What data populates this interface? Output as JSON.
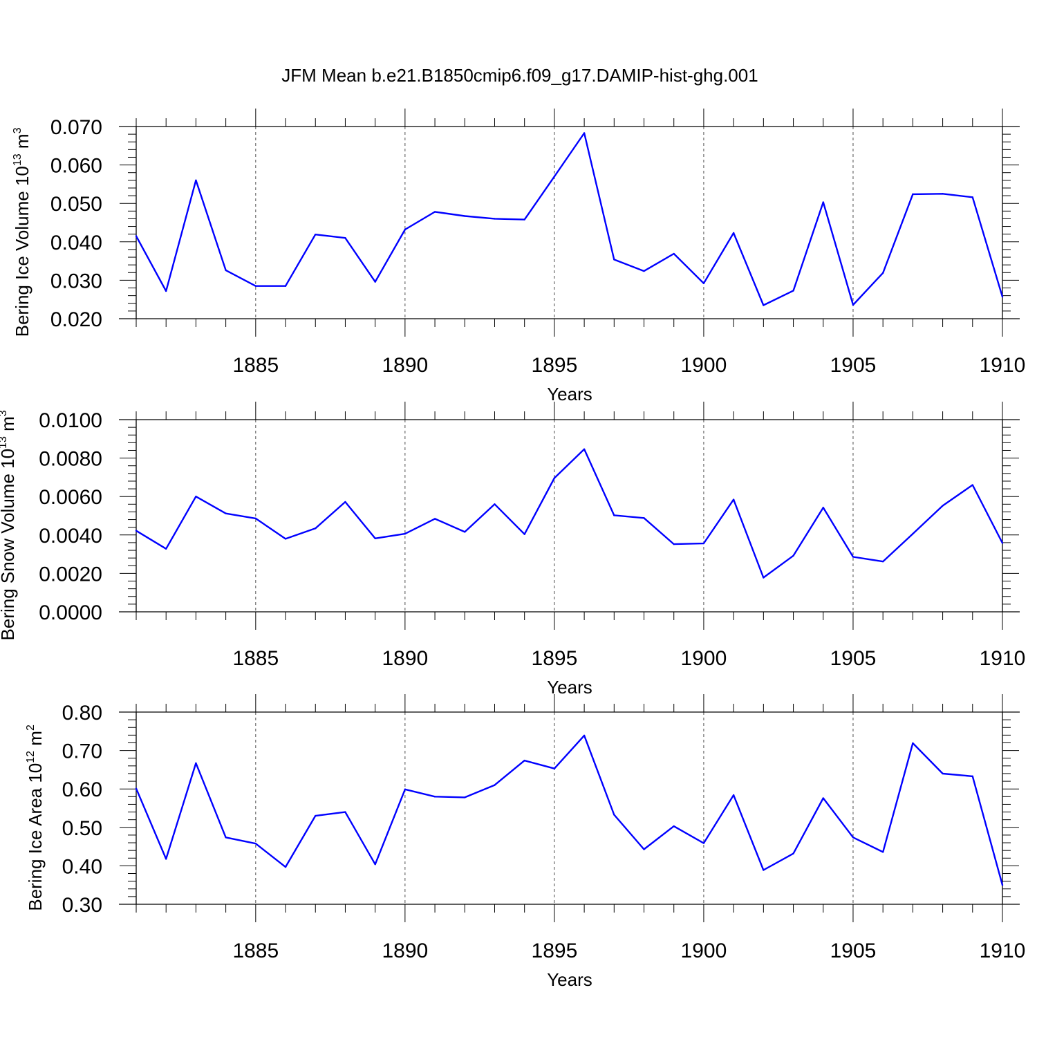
{
  "title": "JFM Mean b.e21.B1850cmip6.f09_g17.DAMIP-hist-ghg.001",
  "line_color": "#0000ff",
  "chart_data": [
    {
      "type": "line",
      "ylabel_main": "Bering Ice Volume 10",
      "ylabel_exp": "13",
      "ylabel_unit": "m",
      "ylabel_unit_exp": "3",
      "xlabel": "Years",
      "xlim": [
        1881,
        1910
      ],
      "ylim": [
        0.02,
        0.07
      ],
      "x_ticks": [
        1885,
        1890,
        1895,
        1900,
        1905,
        1910
      ],
      "y_ticks": [
        0.02,
        0.03,
        0.04,
        0.05,
        0.06,
        0.07
      ],
      "y_tick_labels": [
        "0.020",
        "0.030",
        "0.040",
        "0.050",
        "0.060",
        "0.070"
      ],
      "grid": "dashed vertical at major x ticks",
      "x": [
        1881,
        1882,
        1883,
        1884,
        1885,
        1886,
        1887,
        1888,
        1889,
        1890,
        1891,
        1892,
        1893,
        1894,
        1895,
        1896,
        1897,
        1898,
        1899,
        1900,
        1901,
        1902,
        1903,
        1904,
        1905,
        1906,
        1907,
        1908,
        1909,
        1910
      ],
      "values": [
        0.0415,
        0.0272,
        0.056,
        0.0326,
        0.0285,
        0.0285,
        0.0419,
        0.041,
        0.0296,
        0.0432,
        0.0478,
        0.0467,
        0.046,
        0.0458,
        0.057,
        0.0683,
        0.0354,
        0.0324,
        0.0369,
        0.0292,
        0.0423,
        0.0235,
        0.0273,
        0.0503,
        0.0236,
        0.0319,
        0.0524,
        0.0525,
        0.0516,
        0.0257
      ]
    },
    {
      "type": "line",
      "ylabel_main": "Bering Snow Volume 10",
      "ylabel_exp": "13",
      "ylabel_unit": "m",
      "ylabel_unit_exp": "3",
      "xlabel": "Years",
      "xlim": [
        1881,
        1910
      ],
      "ylim": [
        0.0,
        0.01
      ],
      "x_ticks": [
        1885,
        1890,
        1895,
        1900,
        1905,
        1910
      ],
      "y_ticks": [
        0.0,
        0.002,
        0.004,
        0.006,
        0.008,
        0.01
      ],
      "y_tick_labels": [
        "0.0000",
        "0.0020",
        "0.0040",
        "0.0060",
        "0.0080",
        "0.0100"
      ],
      "grid": "dashed vertical at major x ticks",
      "x": [
        1881,
        1882,
        1883,
        1884,
        1885,
        1886,
        1887,
        1888,
        1889,
        1890,
        1891,
        1892,
        1893,
        1894,
        1895,
        1896,
        1897,
        1898,
        1899,
        1900,
        1901,
        1902,
        1903,
        1904,
        1905,
        1906,
        1907,
        1908,
        1909,
        1910
      ],
      "values": [
        0.00422,
        0.00328,
        0.006,
        0.00512,
        0.00486,
        0.0038,
        0.00434,
        0.00572,
        0.00382,
        0.00406,
        0.00484,
        0.00416,
        0.0056,
        0.00404,
        0.00696,
        0.00846,
        0.00502,
        0.00488,
        0.00352,
        0.00356,
        0.00584,
        0.00178,
        0.00292,
        0.00542,
        0.00286,
        0.00262,
        0.00406,
        0.00552,
        0.0066,
        0.00358
      ]
    },
    {
      "type": "line",
      "ylabel_main": "Bering Ice Area 10",
      "ylabel_exp": "12",
      "ylabel_unit": "m",
      "ylabel_unit_exp": "2",
      "xlabel": "Years",
      "xlim": [
        1881,
        1910
      ],
      "ylim": [
        0.3,
        0.8
      ],
      "x_ticks": [
        1885,
        1890,
        1895,
        1900,
        1905,
        1910
      ],
      "y_ticks": [
        0.3,
        0.4,
        0.5,
        0.6,
        0.7,
        0.8
      ],
      "y_tick_labels": [
        "0.30",
        "0.40",
        "0.50",
        "0.60",
        "0.70",
        "0.80"
      ],
      "grid": "dashed vertical at major x ticks",
      "x": [
        1881,
        1882,
        1883,
        1884,
        1885,
        1886,
        1887,
        1888,
        1889,
        1890,
        1891,
        1892,
        1893,
        1894,
        1895,
        1896,
        1897,
        1898,
        1899,
        1900,
        1901,
        1902,
        1903,
        1904,
        1905,
        1906,
        1907,
        1908,
        1909,
        1910
      ],
      "values": [
        0.601,
        0.418,
        0.667,
        0.474,
        0.458,
        0.397,
        0.53,
        0.54,
        0.404,
        0.599,
        0.58,
        0.578,
        0.61,
        0.674,
        0.653,
        0.739,
        0.533,
        0.443,
        0.503,
        0.459,
        0.584,
        0.389,
        0.432,
        0.576,
        0.474,
        0.436,
        0.719,
        0.64,
        0.633,
        0.35
      ]
    }
  ]
}
